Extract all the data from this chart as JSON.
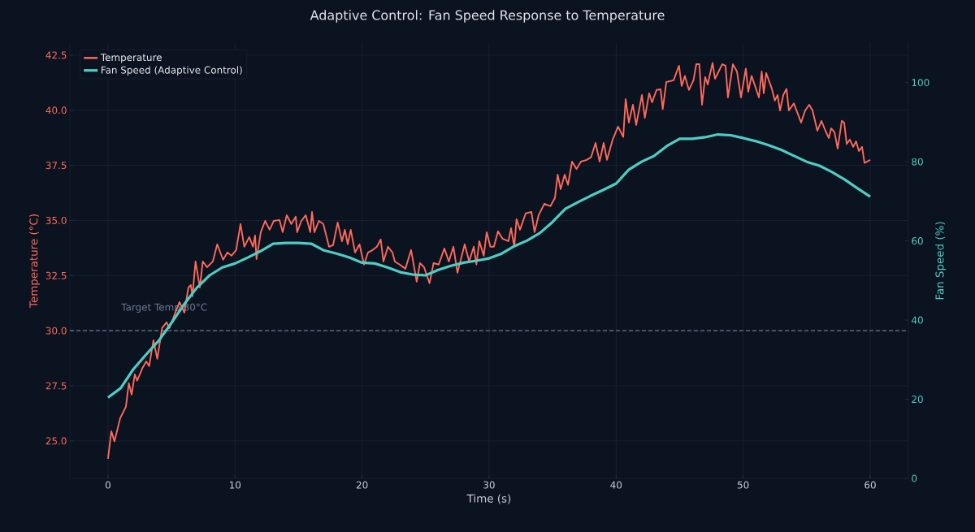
{
  "chart_data": {
    "type": "line",
    "title": "Adaptive Control: Fan Speed Response to Temperature",
    "xlabel": "Time (s)",
    "ylabel": "Temperature (°C)",
    "y2label": "Fan Speed (%)",
    "xlim": [
      -3,
      63
    ],
    "xticks": [
      0,
      10,
      20,
      30,
      40,
      50,
      60
    ],
    "ylim": [
      23.3,
      43.05
    ],
    "yticks": [
      {
        "value": 25,
        "label": "25.0"
      },
      27.5,
      {
        "value": 30,
        "label": "30.0"
      },
      32.5,
      {
        "value": 35,
        "label": "35.0"
      },
      37.5,
      {
        "value": 40,
        "label": "40.0"
      },
      42.5
    ],
    "y2lim": [
      0,
      110
    ],
    "y2ticks": [
      0,
      20,
      40,
      60,
      80,
      100
    ],
    "grid": true,
    "legend": "top left",
    "line_style": "solid",
    "ref_lines": [
      {
        "axis": "y",
        "value": 30,
        "label": "Target Temp 30°C",
        "color": "#6b7a90",
        "line_style": "dashed"
      }
    ],
    "series": [
      {
        "name": "Temperature",
        "color": "#ff6b5b",
        "x": [
          0.0,
          0.26,
          0.51,
          0.96,
          1.41,
          1.64,
          1.86,
          2.11,
          2.3,
          2.69,
          3.01,
          3.24,
          3.58,
          3.88,
          4.26,
          4.61,
          4.84,
          5.18,
          5.63,
          6.01,
          6.33,
          6.52,
          6.65,
          6.89,
          7.23,
          7.46,
          7.8,
          8.25,
          8.6,
          9.06,
          9.4,
          9.72,
          10.09,
          10.43,
          10.73,
          11.12,
          11.41,
          11.58,
          11.69,
          12.03,
          12.37,
          12.72,
          13.05,
          13.5,
          13.75,
          14.07,
          14.43,
          14.78,
          14.89,
          15.22,
          15.57,
          15.92,
          16.06,
          16.25,
          16.6,
          16.95,
          17.4,
          17.72,
          18.08,
          18.42,
          18.65,
          18.87,
          19.11,
          19.45,
          19.8,
          20.15,
          20.47,
          20.83,
          21.17,
          21.47,
          21.68,
          22.04,
          22.39,
          22.58,
          22.96,
          23.41,
          23.86,
          24.3,
          24.56,
          24.88,
          25.31,
          25.63,
          26.03,
          26.48,
          26.83,
          27.19,
          27.51,
          28.08,
          28.43,
          28.79,
          29.0,
          29.23,
          29.58,
          29.81,
          30.1,
          30.38,
          30.7,
          31.06,
          31.52,
          31.73,
          31.98,
          32.16,
          32.43,
          32.88,
          33.33,
          33.58,
          33.9,
          34.35,
          34.83,
          35.18,
          35.4,
          35.63,
          35.95,
          36.21,
          36.53,
          36.88,
          37.23,
          37.68,
          38.03,
          38.38,
          38.7,
          39.02,
          39.28,
          39.73,
          40.15,
          40.56,
          40.75,
          41.0,
          41.32,
          41.58,
          42.03,
          42.26,
          42.6,
          42.83,
          43.18,
          43.5,
          43.67,
          43.95,
          44.52,
          44.95,
          45.16,
          45.41,
          45.73,
          46.09,
          46.31,
          46.55,
          46.76,
          47.01,
          47.21,
          47.59,
          47.78,
          48.36,
          48.61,
          48.8,
          49.19,
          49.51,
          49.83,
          50.21,
          50.4,
          50.66,
          50.98,
          51.24,
          51.46,
          51.62,
          51.81,
          52.26,
          52.49,
          52.71,
          52.9,
          53.16,
          53.41,
          53.6,
          53.99,
          54.56,
          54.88,
          55.2,
          55.46,
          55.84,
          56.16,
          56.48,
          56.74,
          56.93,
          57.19,
          57.44,
          57.76,
          57.95,
          58.15,
          58.4,
          58.66,
          58.89,
          59.11,
          59.36,
          59.55,
          60.0
        ],
        "values": [
          24.19,
          25.44,
          24.98,
          26.03,
          26.55,
          27.62,
          27.1,
          28.02,
          27.73,
          28.28,
          28.61,
          28.39,
          29.57,
          28.72,
          30.12,
          30.38,
          30.12,
          30.64,
          31.3,
          30.82,
          31.96,
          32.07,
          31.56,
          33.14,
          31.96,
          33.14,
          32.88,
          33.14,
          33.92,
          33.22,
          33.55,
          33.4,
          33.66,
          34.84,
          33.81,
          34.25,
          33.81,
          34.32,
          33.25,
          34.47,
          34.98,
          34.58,
          34.98,
          35.02,
          34.47,
          35.24,
          34.84,
          35.17,
          34.47,
          34.98,
          35.24,
          34.47,
          35.39,
          34.47,
          34.98,
          34.84,
          33.81,
          33.88,
          34.91,
          34.06,
          34.58,
          33.92,
          34.58,
          33.55,
          33.92,
          33.0,
          33.55,
          33.66,
          33.81,
          34.14,
          33.14,
          33.81,
          33.55,
          33.14,
          33.0,
          32.81,
          33.66,
          32.22,
          33.07,
          32.88,
          32.15,
          33.07,
          33.0,
          33.73,
          33.14,
          33.81,
          32.63,
          33.92,
          33.14,
          33.81,
          33.0,
          34.06,
          33.4,
          34.47,
          33.81,
          33.81,
          34.51,
          34.17,
          34.06,
          34.65,
          33.81,
          35.06,
          34.58,
          35.32,
          35.39,
          34.47,
          35.24,
          35.76,
          35.65,
          36.02,
          37.08,
          36.42,
          37.08,
          36.62,
          37.67,
          37.34,
          37.67,
          37.75,
          37.87,
          38.52,
          37.67,
          38.52,
          37.75,
          38.67,
          39.26,
          38.79,
          40.51,
          39.44,
          40.25,
          39.33,
          40.69,
          39.66,
          40.77,
          40.36,
          40.92,
          40.95,
          40.05,
          41.28,
          41.36,
          42.02,
          41.1,
          41.56,
          40.92,
          41.36,
          42.09,
          42.09,
          40.25,
          41.51,
          41.17,
          42.15,
          41.43,
          42.09,
          42.02,
          40.58,
          42.09,
          41.76,
          40.58,
          41.89,
          40.84,
          41.56,
          41.03,
          40.58,
          41.76,
          40.77,
          41.69,
          40.97,
          40.44,
          40.69,
          39.99,
          40.69,
          40.97,
          39.99,
          40.31,
          39.44,
          39.99,
          40.25,
          39.99,
          39.07,
          39.52,
          39.07,
          38.74,
          39.18,
          39.0,
          38.26,
          39.52,
          39.44,
          38.47,
          38.67,
          38.34,
          38.59,
          38.15,
          38.34,
          37.61,
          37.75
        ]
      },
      {
        "name": "Fan Speed (Adaptive Control)",
        "color": "#4ecdc4",
        "axis": "y2",
        "x": [
          0,
          1,
          2,
          3,
          4,
          5,
          6,
          7,
          8,
          9,
          10,
          11,
          12,
          13,
          14,
          15,
          16,
          17,
          18,
          19,
          20,
          21,
          22,
          23,
          24,
          25,
          26,
          27,
          28,
          29,
          30,
          31,
          32,
          33,
          34,
          35,
          36,
          37,
          38,
          39,
          40,
          41,
          42,
          43,
          44,
          45,
          46,
          47,
          48,
          49,
          50,
          51,
          52,
          53,
          54,
          55,
          56,
          57,
          58,
          59,
          60
        ],
        "values": [
          20.4,
          22.8,
          27.6,
          31.3,
          34.8,
          39.3,
          44,
          48.2,
          51.3,
          53.3,
          54.3,
          55.8,
          57.4,
          59.3,
          59.5,
          59.5,
          59.3,
          57.6,
          56.8,
          55.8,
          54.5,
          54.3,
          53.3,
          52.1,
          51.5,
          51.3,
          52.7,
          53.7,
          54.5,
          55.0,
          55.6,
          56.8,
          58.7,
          60.1,
          62,
          64.8,
          68.1,
          69.8,
          71.4,
          72.9,
          74.5,
          78,
          80,
          81.5,
          84,
          85.8,
          85.8,
          86.2,
          86.9,
          86.7,
          86,
          85.2,
          84.2,
          83,
          81.5,
          80,
          79,
          77.4,
          75.5,
          73.3,
          71.2
        ]
      }
    ]
  }
}
